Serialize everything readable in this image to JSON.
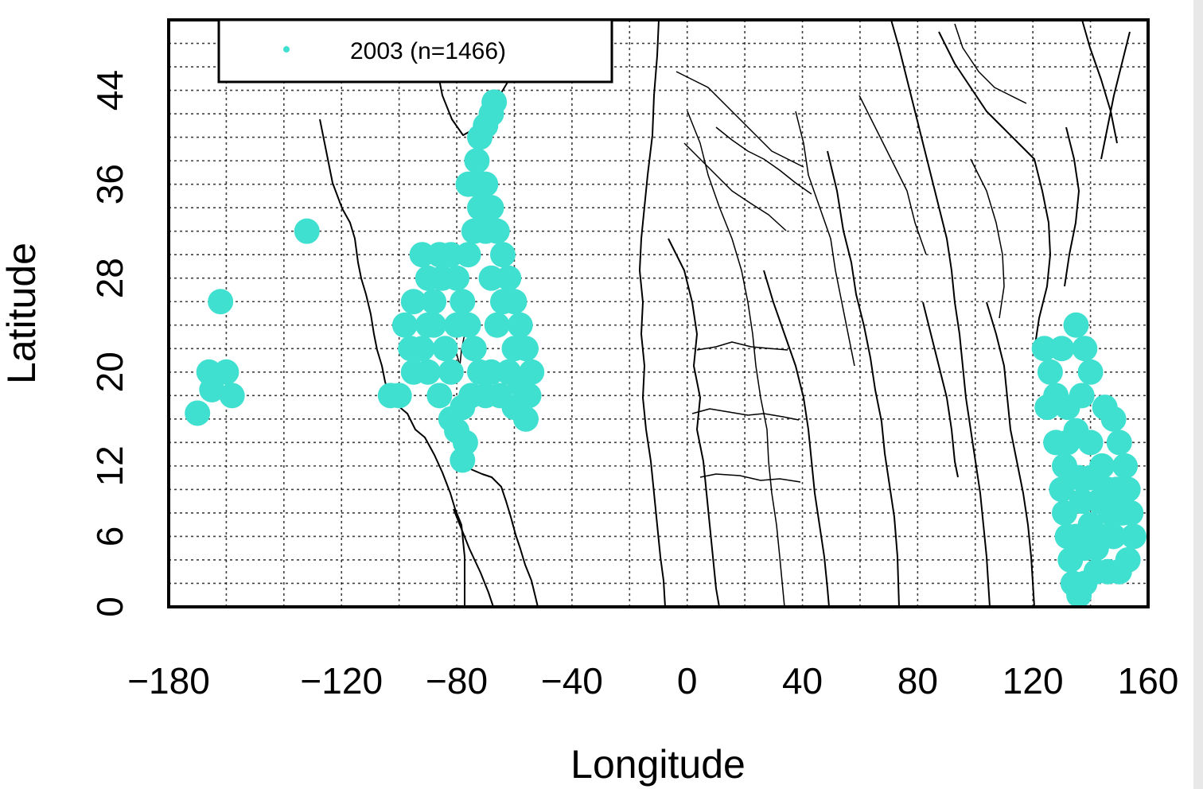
{
  "chart_data": {
    "type": "scatter",
    "xlabel": "Longitude",
    "ylabel": "Latitude",
    "xlim": [
      -180,
      160
    ],
    "ylim": [
      0,
      50
    ],
    "xticks": [
      "−180",
      "−120",
      "−80",
      "−40",
      "0",
      "40",
      "80",
      "120",
      "160"
    ],
    "xtick_values": [
      -180,
      -120,
      -80,
      -40,
      0,
      40,
      80,
      120,
      160
    ],
    "yticks": [
      "0",
      "6",
      "12",
      "20",
      "28",
      "36",
      "44"
    ],
    "ytick_values": [
      0,
      6,
      12,
      20,
      28,
      36,
      44
    ],
    "grid": true,
    "legend_position": "top-left",
    "series": [
      {
        "name": "2003 (n=1466)",
        "color": "#40e0d0",
        "points": [
          [
            -132,
            32
          ],
          [
            -162,
            26
          ],
          [
            -166,
            20
          ],
          [
            -170,
            16.5
          ],
          [
            -165,
            18.5
          ],
          [
            -160,
            20
          ],
          [
            -158,
            18
          ],
          [
            -103,
            18
          ],
          [
            -100,
            18
          ],
          [
            -95,
            20
          ],
          [
            -92,
            22
          ],
          [
            -90,
            24
          ],
          [
            -88,
            26
          ],
          [
            -85,
            28
          ],
          [
            -82,
            30
          ],
          [
            -80,
            28
          ],
          [
            -78,
            26
          ],
          [
            -76,
            24
          ],
          [
            -74,
            22
          ],
          [
            -72,
            20
          ],
          [
            -75,
            18
          ],
          [
            -78,
            17
          ],
          [
            -80,
            15
          ],
          [
            -77,
            14
          ],
          [
            -78,
            12.5
          ],
          [
            -70,
            18
          ],
          [
            -65,
            18
          ],
          [
            -60,
            17
          ],
          [
            -55,
            18
          ],
          [
            -54,
            20
          ],
          [
            -56,
            22
          ],
          [
            -58,
            24
          ],
          [
            -60,
            26
          ],
          [
            -62,
            28
          ],
          [
            -64,
            30
          ],
          [
            -66,
            32
          ],
          [
            -70,
            32
          ],
          [
            -72,
            34
          ],
          [
            -74,
            36
          ],
          [
            -73,
            38
          ],
          [
            -72,
            40
          ],
          [
            -70,
            41
          ],
          [
            -68,
            42
          ],
          [
            -67,
            43
          ],
          [
            -70,
            36
          ],
          [
            -68,
            34
          ],
          [
            -90,
            28
          ],
          [
            -95,
            26
          ],
          [
            -98,
            24
          ],
          [
            -96,
            22
          ],
          [
            -86,
            18
          ],
          [
            -82,
            16
          ],
          [
            -68,
            20
          ],
          [
            -66,
            24
          ],
          [
            -62,
            20
          ],
          [
            -58,
            19
          ],
          [
            -56,
            16
          ],
          [
            -90,
            20
          ],
          [
            -84,
            22
          ],
          [
            -80,
            24
          ],
          [
            -86,
            30
          ],
          [
            -92,
            30
          ],
          [
            -76,
            30
          ],
          [
            -68,
            28
          ],
          [
            -64,
            26
          ],
          [
            -60,
            22
          ],
          [
            -82,
            20
          ],
          [
            -88,
            24
          ],
          [
            -76,
            36
          ],
          [
            -74,
            32
          ],
          [
            124,
            22
          ],
          [
            126,
            20
          ],
          [
            130,
            22
          ],
          [
            135,
            24
          ],
          [
            138,
            22
          ],
          [
            140,
            20
          ],
          [
            128,
            18
          ],
          [
            132,
            17
          ],
          [
            137,
            18
          ],
          [
            145,
            17
          ],
          [
            148,
            16
          ],
          [
            150,
            14
          ],
          [
            152,
            12
          ],
          [
            153,
            10
          ],
          [
            154,
            8
          ],
          [
            155,
            6
          ],
          [
            153,
            4
          ],
          [
            150,
            3
          ],
          [
            146,
            3
          ],
          [
            142,
            3
          ],
          [
            138,
            2
          ],
          [
            136,
            1
          ],
          [
            134,
            2
          ],
          [
            133,
            4
          ],
          [
            132,
            6
          ],
          [
            131,
            8
          ],
          [
            130,
            10
          ],
          [
            131,
            12
          ],
          [
            132,
            14
          ],
          [
            135,
            15
          ],
          [
            140,
            14
          ],
          [
            144,
            12
          ],
          [
            146,
            10
          ],
          [
            147,
            8
          ],
          [
            148,
            6
          ],
          [
            144,
            6
          ],
          [
            140,
            7
          ],
          [
            137,
            9
          ],
          [
            136,
            11
          ],
          [
            140,
            11
          ],
          [
            143,
            9
          ],
          [
            142,
            5
          ],
          [
            138,
            5
          ],
          [
            135,
            6
          ],
          [
            149,
            10
          ],
          [
            151,
            8
          ],
          [
            128,
            14
          ],
          [
            125,
            17
          ]
        ]
      }
    ]
  }
}
